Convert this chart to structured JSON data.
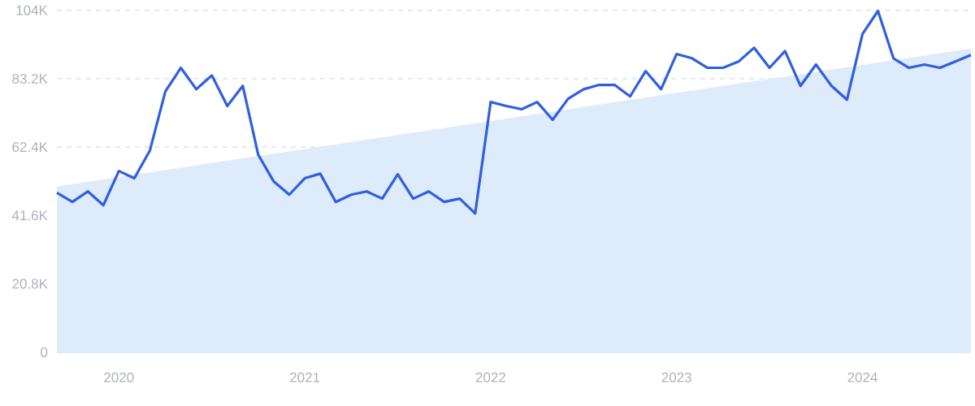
{
  "chart_data": {
    "type": "line",
    "x": [
      "2019-09",
      "2019-10",
      "2019-11",
      "2019-12",
      "2020-01",
      "2020-02",
      "2020-03",
      "2020-04",
      "2020-05",
      "2020-06",
      "2020-07",
      "2020-08",
      "2020-09",
      "2020-10",
      "2020-11",
      "2020-12",
      "2021-01",
      "2021-02",
      "2021-03",
      "2021-04",
      "2021-05",
      "2021-06",
      "2021-07",
      "2021-08",
      "2021-09",
      "2021-10",
      "2021-11",
      "2021-12",
      "2022-01",
      "2022-02",
      "2022-03",
      "2022-04",
      "2022-05",
      "2022-06",
      "2022-07",
      "2022-08",
      "2022-09",
      "2022-10",
      "2022-11",
      "2022-12",
      "2023-01",
      "2023-02",
      "2023-03",
      "2023-04",
      "2023-05",
      "2023-06",
      "2023-07",
      "2023-08",
      "2023-09",
      "2023-10",
      "2023-11",
      "2023-12",
      "2024-01",
      "2024-02",
      "2024-03",
      "2024-04",
      "2024-05",
      "2024-06",
      "2024-07",
      "2024-08"
    ],
    "series": [
      {
        "type": "area",
        "color": "#deebfa",
        "x": [
          "2019-09",
          "2024-08"
        ],
        "values": [
          50400,
          92400
        ]
      },
      {
        "color": "#2f5fe0",
        "values": [
          48500,
          45700,
          48900,
          44700,
          55100,
          52900,
          61300,
          79300,
          86500,
          80000,
          84200,
          74900,
          81000,
          60000,
          51900,
          47900,
          52900,
          54300,
          45700,
          47900,
          48900,
          46700,
          54100,
          46700,
          48900,
          45700,
          46700,
          42200,
          76100,
          74900,
          73900,
          76100,
          70700,
          77100,
          80000,
          81300,
          81300,
          77800,
          85500,
          80000,
          90700,
          89400,
          86500,
          86500,
          88400,
          92600,
          86500,
          91600,
          81000,
          87500,
          81000,
          76800,
          96800,
          103800,
          89400,
          86500,
          87500,
          86500,
          88400,
          90400
        ]
      }
    ],
    "xlim": [
      "2019-09",
      "2024-08"
    ],
    "xticks": [
      {
        "value": "2020-01",
        "label": "2020"
      },
      {
        "value": "2021-01",
        "label": "2021"
      },
      {
        "value": "2022-01",
        "label": "2022"
      },
      {
        "value": "2023-01",
        "label": "2023"
      },
      {
        "value": "2024-01",
        "label": "2024"
      }
    ],
    "ylim": [
      0,
      104000
    ],
    "yticks": [
      0,
      {
        "value": 20800,
        "label": "20.8K"
      },
      {
        "value": 41600,
        "label": "41.6K"
      },
      {
        "value": 62400,
        "label": "62.4K"
      },
      {
        "value": 83200,
        "label": "83.2K"
      },
      {
        "value": 104000,
        "label": "104K"
      }
    ],
    "grid": "y",
    "legend": false,
    "marker": "none",
    "line_style": "solid"
  }
}
